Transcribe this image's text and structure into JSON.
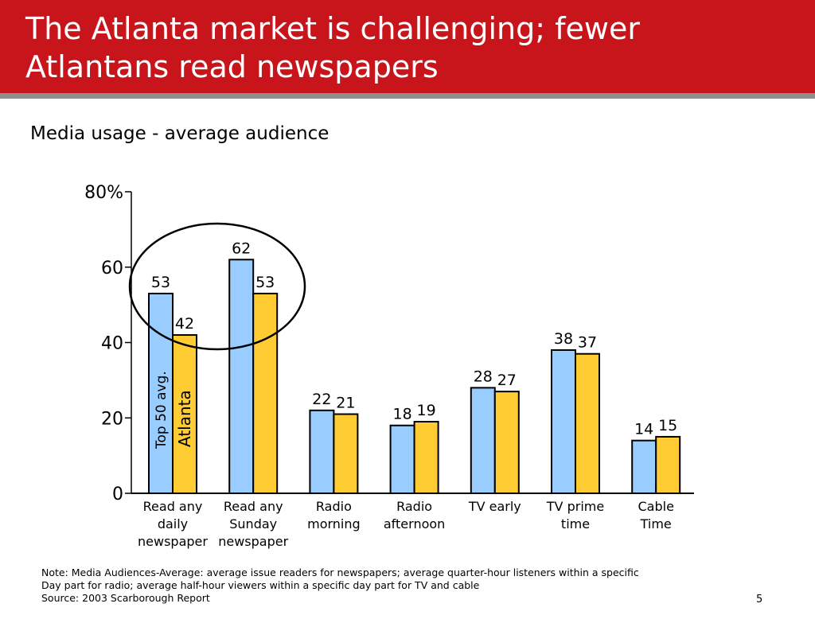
{
  "slide": {
    "title": "The Atlanta market is challenging; fewer\nAtlantans read newspapers",
    "subtitle": "Media usage - average audience",
    "page_number": "5",
    "notes": [
      "Note: Media Audiences-Average: average issue readers for newspapers; average quarter-hour listeners within a specific",
      "Day part for radio; average half-hour viewers within a specific day part for TV and cable",
      "Source: 2003 Scarborough Report"
    ]
  },
  "colors": {
    "title_bar": "#c8141b",
    "title_rule": "#8f8f8f",
    "series_top50": "#99ccff",
    "series_atlanta": "#ffcc33",
    "outline": "#000000"
  },
  "chart_data": {
    "type": "bar",
    "categories": [
      [
        "Read any",
        "daily",
        "newspaper"
      ],
      [
        "Read any",
        "Sunday",
        "newspaper"
      ],
      [
        "Radio",
        "morning"
      ],
      [
        "Radio",
        "afternoon"
      ],
      [
        "TV early"
      ],
      [
        "TV prime",
        "time"
      ],
      [
        "Cable",
        "Time"
      ]
    ],
    "series": [
      {
        "name": "Top 50 avg.",
        "values": [
          53,
          62,
          22,
          18,
          28,
          38,
          14
        ],
        "color": "#99ccff"
      },
      {
        "name": "Atlanta",
        "values": [
          42,
          53,
          21,
          19,
          27,
          37,
          15
        ],
        "color": "#ffcc33"
      }
    ],
    "ylim": [
      0,
      80
    ],
    "yticks": [
      "0",
      "20",
      "40",
      "60",
      "80%"
    ],
    "grid": false,
    "legend": "series names written vertically inside the first pair of bars",
    "annotation": "ellipse circling the two newspaper categories"
  }
}
